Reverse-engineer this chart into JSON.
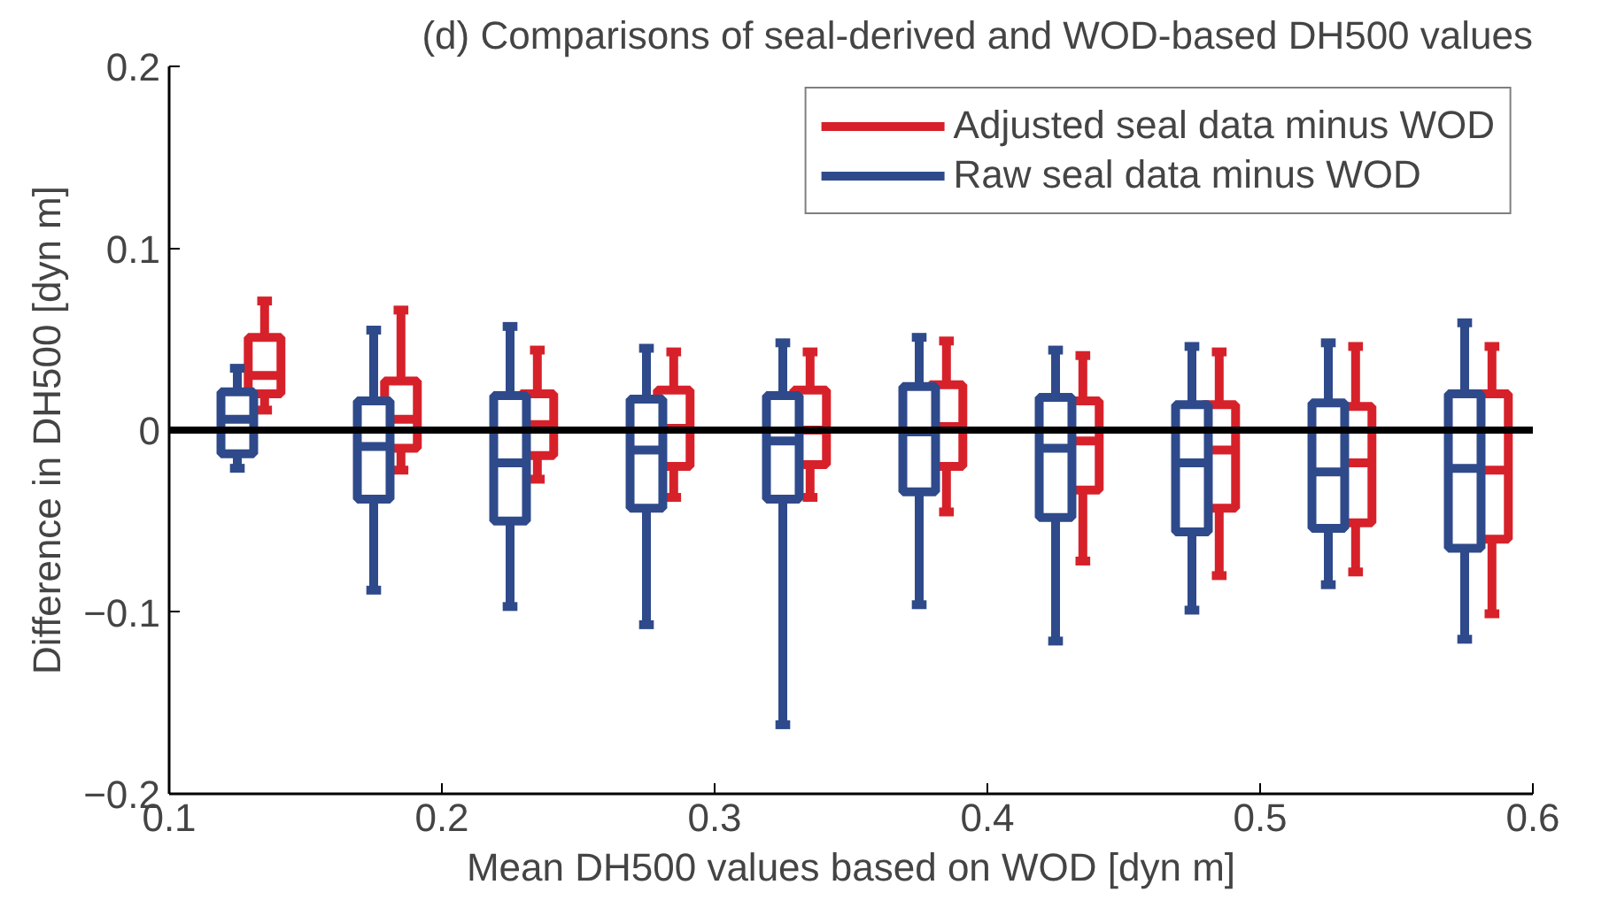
{
  "chart_data": {
    "type": "box",
    "title": "(d) Comparisons of seal-derived and WOD-based DH500 values",
    "xlabel": "Mean DH500 values based on WOD [dyn m]",
    "ylabel": "Difference in DH500 [dyn m]",
    "xlim": [
      0.1,
      0.6
    ],
    "xticks": [
      0.1,
      0.2,
      0.3,
      0.4,
      0.5,
      0.6
    ],
    "ylim": [
      -0.2,
      0.2
    ],
    "yticks": [
      {
        "value": -0.2,
        "label": "−0.2"
      },
      {
        "value": -0.1,
        "label": "−0.1"
      },
      0,
      0.1,
      0.2
    ],
    "grid": false,
    "legend": "top right",
    "ref_lines": [
      {
        "axis": "y",
        "value": 0,
        "label": null,
        "color": "#000000"
      }
    ],
    "series": [
      {
        "name": "Adjusted seal data minus WOD",
        "color": "#d7212a",
        "x": [
          0.135,
          0.185,
          0.235,
          0.285,
          0.335,
          0.385,
          0.435,
          0.485,
          0.535,
          0.585
        ],
        "boxes": [
          {
            "low": 0.011,
            "q1": 0.02,
            "median": 0.03,
            "q3": 0.051,
            "high": 0.071
          },
          {
            "low": -0.022,
            "q1": -0.01,
            "median": 0.006,
            "q3": 0.027,
            "high": 0.066
          },
          {
            "low": -0.027,
            "q1": -0.014,
            "median": 0.003,
            "q3": 0.02,
            "high": 0.044
          },
          {
            "low": -0.037,
            "q1": -0.02,
            "median": 0.001,
            "q3": 0.022,
            "high": 0.043
          },
          {
            "low": -0.037,
            "q1": -0.019,
            "median": 0.0,
            "q3": 0.022,
            "high": 0.043
          },
          {
            "low": -0.045,
            "q1": -0.02,
            "median": 0.002,
            "q3": 0.025,
            "high": 0.049
          },
          {
            "low": -0.072,
            "q1": -0.033,
            "median": -0.006,
            "q3": 0.016,
            "high": 0.041
          },
          {
            "low": -0.08,
            "q1": -0.043,
            "median": -0.011,
            "q3": 0.014,
            "high": 0.043
          },
          {
            "low": -0.078,
            "q1": -0.051,
            "median": -0.018,
            "q3": 0.013,
            "high": 0.046
          },
          {
            "low": -0.101,
            "q1": -0.06,
            "median": -0.022,
            "q3": 0.02,
            "high": 0.046
          }
        ]
      },
      {
        "name": "Raw seal data minus WOD",
        "color": "#2e4a8b",
        "x": [
          0.125,
          0.175,
          0.225,
          0.275,
          0.325,
          0.375,
          0.425,
          0.475,
          0.525,
          0.575
        ],
        "boxes": [
          {
            "low": -0.021,
            "q1": -0.013,
            "median": 0.006,
            "q3": 0.021,
            "high": 0.034
          },
          {
            "low": -0.088,
            "q1": -0.038,
            "median": -0.009,
            "q3": 0.016,
            "high": 0.055
          },
          {
            "low": -0.097,
            "q1": -0.05,
            "median": -0.018,
            "q3": 0.019,
            "high": 0.057
          },
          {
            "low": -0.107,
            "q1": -0.043,
            "median": -0.011,
            "q3": 0.017,
            "high": 0.045
          },
          {
            "low": -0.162,
            "q1": -0.038,
            "median": -0.006,
            "q3": 0.019,
            "high": 0.048
          },
          {
            "low": -0.096,
            "q1": -0.034,
            "median": -0.001,
            "q3": 0.024,
            "high": 0.051
          },
          {
            "low": -0.116,
            "q1": -0.048,
            "median": -0.01,
            "q3": 0.018,
            "high": 0.044
          },
          {
            "low": -0.099,
            "q1": -0.056,
            "median": -0.018,
            "q3": 0.014,
            "high": 0.046
          },
          {
            "low": -0.085,
            "q1": -0.054,
            "median": -0.023,
            "q3": 0.015,
            "high": 0.048
          },
          {
            "low": -0.115,
            "q1": -0.065,
            "median": -0.021,
            "q3": 0.02,
            "high": 0.059
          }
        ]
      }
    ]
  }
}
